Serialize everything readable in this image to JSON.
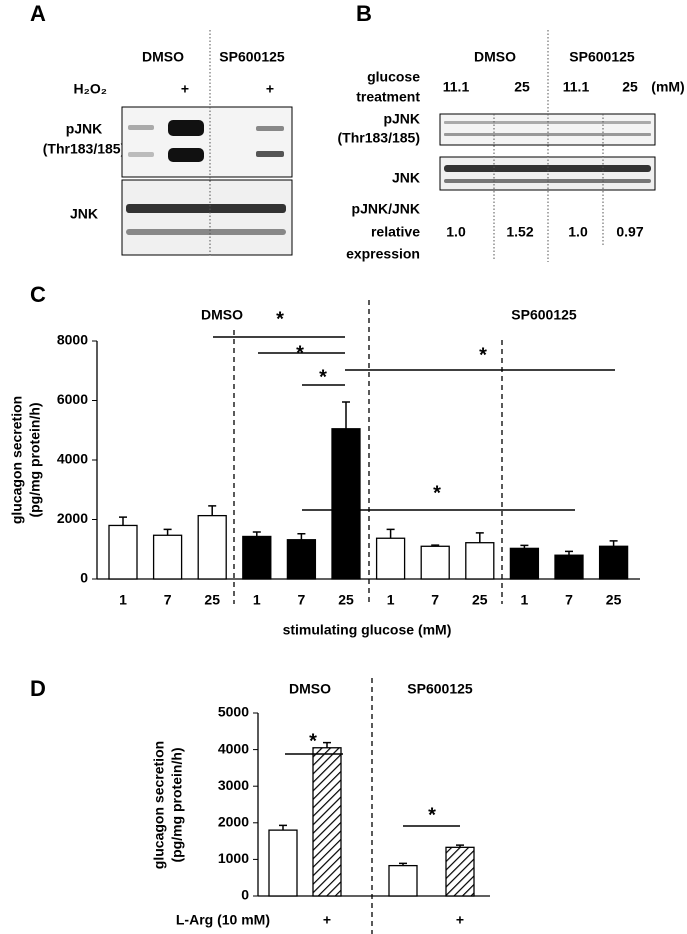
{
  "panel_a": {
    "label": "A",
    "groups": [
      "DMSO",
      "SP600125"
    ],
    "treatment": "H₂O₂",
    "treatment_marks": [
      "+",
      "+"
    ],
    "rows": [
      [
        "pJNK",
        "(Thr183/185)"
      ],
      [
        "JNK"
      ]
    ]
  },
  "panel_b": {
    "label": "B",
    "groups": [
      "DMSO",
      "SP600125"
    ],
    "condition": [
      "glucose",
      "treatment"
    ],
    "conditions": [
      "11.1",
      "25",
      "11.1",
      "25"
    ],
    "unit": "(mM)",
    "rows": [
      [
        "pJNK",
        "(Thr183/185)"
      ],
      [
        "JNK"
      ]
    ],
    "ratio_label": [
      "pJNK/JNK",
      "relative",
      "expression"
    ],
    "ratios": [
      "1.0",
      "1.52",
      "1.0",
      "0.97"
    ]
  },
  "chart_data": [
    {
      "type": "bar",
      "panel_label": "C",
      "groups": [
        "DMSO",
        "SP600125"
      ],
      "ylabel": [
        "glucagon secretion",
        "(pg/mg protein/h)"
      ],
      "xlabel": "stimulating glucose (mM)",
      "categories": [
        "1",
        "7",
        "25",
        "1",
        "7",
        "25",
        "1",
        "7",
        "25",
        "1",
        "7",
        "25"
      ],
      "values": [
        1800,
        1470,
        2130,
        1430,
        1320,
        5050,
        1370,
        1100,
        1220,
        1030,
        800,
        1100
      ],
      "errors": [
        280,
        200,
        330,
        150,
        200,
        900,
        300,
        40,
        330,
        100,
        130,
        180
      ],
      "colors": [
        "#ffffff",
        "#ffffff",
        "#ffffff",
        "#000000",
        "#000000",
        "#000000",
        "#ffffff",
        "#ffffff",
        "#ffffff",
        "#000000",
        "#000000",
        "#000000"
      ],
      "ylim": [
        0,
        8000
      ],
      "yticks": [
        0,
        2000,
        4000,
        6000,
        8000
      ],
      "annotations": [
        "*",
        "*",
        "*",
        "*",
        "*"
      ]
    },
    {
      "type": "bar",
      "panel_label": "D",
      "groups": [
        "DMSO",
        "SP600125"
      ],
      "ylabel": [
        "glucagon secretion",
        "(pg/mg protein/h)"
      ],
      "xlabel": "L-Arg (10 mM)",
      "categories": [
        null,
        "+",
        null,
        "+"
      ],
      "values": [
        1800,
        4050,
        830,
        1330
      ],
      "errors": [
        130,
        140,
        60,
        60
      ],
      "colors": [
        "#ffffff",
        "#ffffff",
        "#ffffff",
        "#ffffff"
      ],
      "hatch": [
        false,
        true,
        false,
        true
      ],
      "ylim": [
        0,
        5000
      ],
      "yticks": [
        0,
        1000,
        2000,
        3000,
        4000,
        5000
      ],
      "annotations": [
        "*",
        "*"
      ]
    }
  ]
}
